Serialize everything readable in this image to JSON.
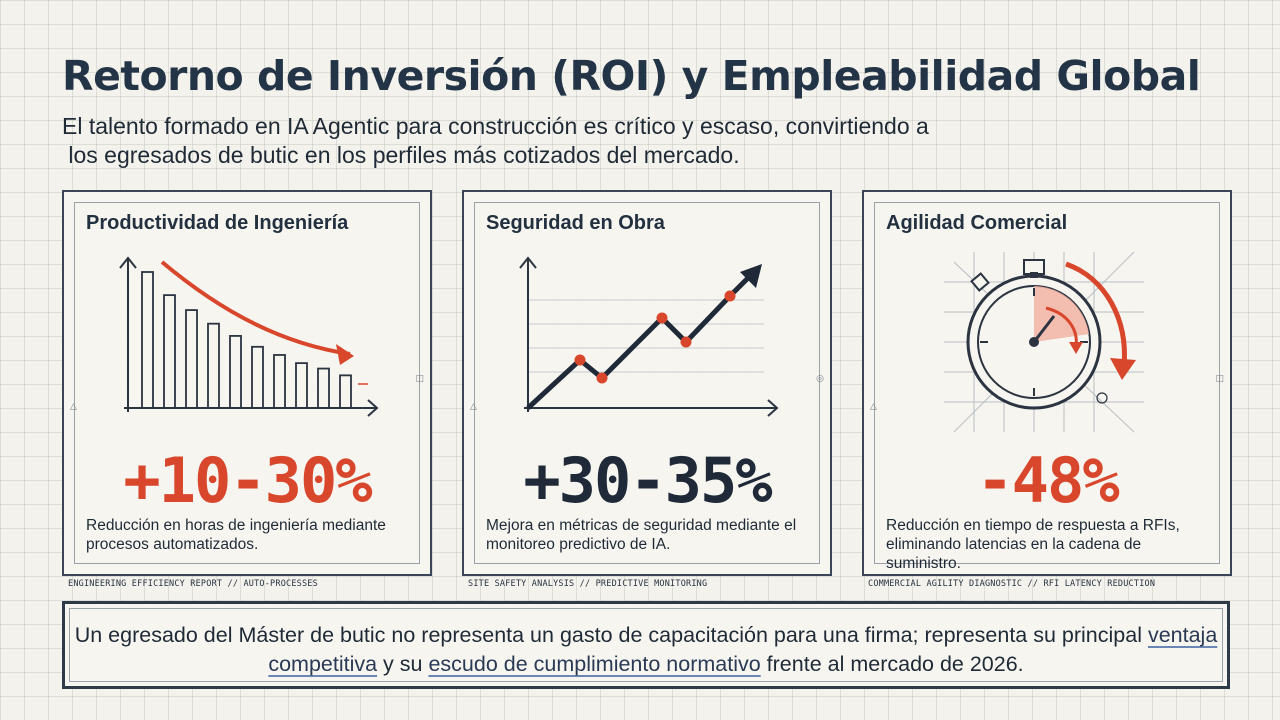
{
  "header": {
    "title": "Retorno de Inversión (ROI) y Empleabilidad Global",
    "subtitle_line1": "El talento formado en IA Agentic para construcción es crítico y escaso, convirtiendo a",
    "subtitle_line2": " los egresados de butic en los perfiles más cotizados del mercado."
  },
  "cards": [
    {
      "title": "Productividad de Ingeniería",
      "value": "+10-30%",
      "description": "Reducción en horas de ingeniería mediante procesos automatizados.",
      "caption": "ENGINEERING EFFICIENCY REPORT // AUTO-PROCESSES",
      "illustration": "declining-bar-chart-icon",
      "bar_levels": [
        1.0,
        0.83,
        0.72,
        0.62,
        0.53,
        0.45,
        0.39,
        0.33,
        0.29,
        0.24
      ]
    },
    {
      "title": "Seguridad en Obra",
      "value": "+30-35%",
      "description": "Mejora en métricas de seguridad mediante el monitoreo predictivo de IA.",
      "caption": "SITE SAFETY ANALYSIS // PREDICTIVE MONITORING",
      "illustration": "rising-line-chart-icon"
    },
    {
      "title": "Agilidad Comercial",
      "value": "-48%",
      "description": "Reducción en tiempo de respuesta a RFIs, eliminando latencias en la cadena de suministro.",
      "caption": "COMMERCIAL AGILITY DIAGNOSTIC // RFI LATENCY REDUCTION",
      "illustration": "stopwatch-icon"
    }
  ],
  "footer": {
    "text_before": "Un egresado del Máster de butic no representa un gasto de capacitación para una firma; representa su principal ",
    "highlight1": "ventaja competitiva",
    "text_middle": " y su ",
    "highlight2": "escudo de cumplimiento normativo",
    "text_after": " frente al mercado de 2026."
  },
  "colors": {
    "accent_red": "#d8472c",
    "dark_navy": "#1f2937",
    "border": "#3a4656",
    "background": "#f3f2ec"
  }
}
